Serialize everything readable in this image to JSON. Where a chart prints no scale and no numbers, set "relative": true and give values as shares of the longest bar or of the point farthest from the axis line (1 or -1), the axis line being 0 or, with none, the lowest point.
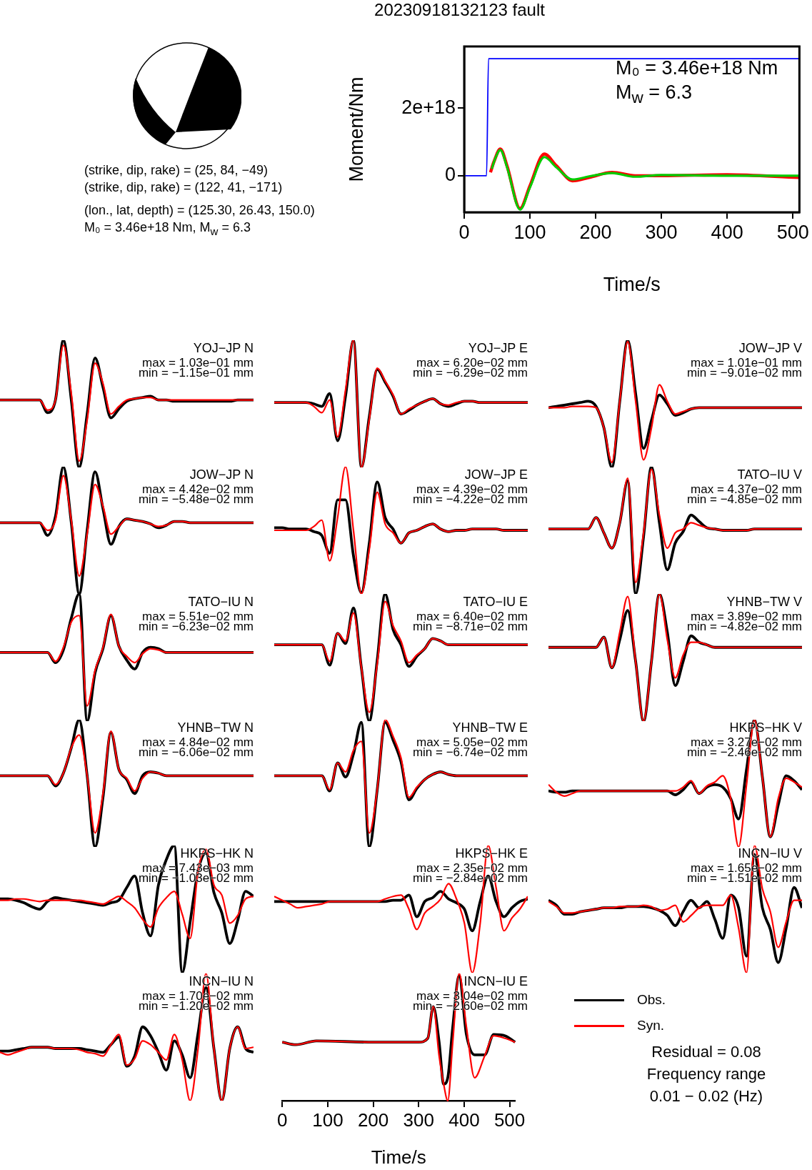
{
  "chart_data": [
    {
      "type": "line",
      "title": "20230918132123 fault",
      "xlabel": "Time/s",
      "ylabel": "Moment/Nm",
      "xlim": [
        0,
        510
      ],
      "xticks": [
        0,
        100,
        200,
        300,
        400,
        500
      ],
      "ylim": [
        -1.08e+18,
        3.82e+18
      ],
      "yticks": [
        0,
        {
          "value": 2e+18,
          "label": "2e+18"
        }
      ],
      "annotations": [
        "(strike, dip, rake) = (25, 84, −49)",
        "(strike, dip, rake) = (122, 41, −171)",
        "(lon., lat, depth) = (125.30, 26.43, 150.0)",
        "M₀ = 3.46e+18 Nm, M$_{w}$ = 6.3",
        "M₀ = 3.46e+18 Nm",
        "M$_{w}$ = 6.3"
      ],
      "series": [
        {
          "color": "#ff0000",
          "x": [
            40,
            45,
            55,
            65,
            85,
            100,
            122,
            140,
            165,
            190,
            225,
            260,
            300,
            400,
            509
          ],
          "values": [
            1e+17,
            4e+17,
            7.9e+17,
            3e+17,
            -9.7e+17,
            -3e+17,
            6.4e+17,
            3e+17,
            -1.5e+17,
            -5e+16,
            1e+17,
            0,
            0,
            3e+16,
            -5e+16
          ]
        },
        {
          "color": "#00cc00",
          "x": [
            42,
            47,
            55,
            65,
            85,
            100,
            122,
            140,
            165,
            190,
            225,
            260,
            300,
            400,
            509
          ],
          "values": [
            2e+17,
            5e+17,
            7.6e+17,
            2.6e+17,
            -1e+18,
            -3.5e+17,
            5.5e+17,
            2.5e+17,
            -1.1e+17,
            -2e+16,
            8e+16,
            -3e+16,
            2e+16,
            0,
            0
          ]
        },
        {
          "color": "#0000ff",
          "x": [
            0,
            34,
            37,
            509
          ],
          "values": [
            0,
            0,
            3.46e+18,
            3.46e+18
          ]
        }
      ]
    },
    {
      "type": "line",
      "title": "YOJ−JP N",
      "annotations": [
        "max = 1.03e−01 mm",
        "min = −1.15e−01 mm"
      ],
      "relative": true,
      "tick_labels": false,
      "categories": [
        null,
        null,
        null,
        null,
        null,
        null,
        null,
        null,
        null,
        null,
        null,
        null,
        null,
        null,
        null,
        null,
        null,
        null,
        null,
        null,
        null,
        null,
        null,
        null,
        null,
        null,
        null,
        null,
        null,
        null,
        null,
        null,
        null
      ],
      "series": [
        {
          "color": "#000000",
          "values": [
            0.53,
            0.53,
            0.53,
            0.53,
            0.53,
            0.53,
            0.43,
            0.53,
            1,
            0.53,
            0,
            0.42,
            0.86,
            0.63,
            0.39,
            0.46,
            0.52,
            0.54,
            0.55,
            0.56,
            0.53,
            0.53,
            0.52,
            0.52,
            0.52,
            0.52,
            0.52,
            0.52,
            0.52,
            0.52,
            0.53,
            0.53,
            0.53
          ]
        },
        {
          "color": "#ff0000",
          "values": [
            0.53,
            0.53,
            0.53,
            0.53,
            0.53,
            0.53,
            0.45,
            0.53,
            0.96,
            0.58,
            0.05,
            0.37,
            0.82,
            0.66,
            0.42,
            0.48,
            0.53,
            0.54,
            0.55,
            0.55,
            0.53,
            0.53,
            0.53,
            0.53,
            0.53,
            0.53,
            0.53,
            0.53,
            0.53,
            0.53,
            0.53,
            0.53,
            0.53
          ]
        }
      ]
    },
    {
      "type": "line",
      "title": "YOJ−JP E",
      "annotations": [
        "max = 6.20e−02 mm",
        "min = −6.29e−02 mm"
      ],
      "relative": true,
      "tick_labels": false,
      "categories": [
        null,
        null,
        null,
        null,
        null,
        null,
        null,
        null,
        null,
        null,
        null,
        null,
        null,
        null,
        null,
        null,
        null,
        null,
        null,
        null,
        null,
        null,
        null,
        null,
        null,
        null,
        null,
        null,
        null,
        null,
        null,
        null,
        null
      ],
      "series": [
        {
          "color": "#000000",
          "values": [
            0.51,
            0.51,
            0.51,
            0.51,
            0.51,
            0.5,
            0.48,
            0.58,
            0.21,
            0.56,
            1,
            0,
            0.4,
            0.77,
            0.67,
            0.56,
            0.42,
            0.45,
            0.49,
            0.52,
            0.54,
            0.5,
            0.48,
            0.5,
            0.52,
            0.52,
            0.51,
            0.51,
            0.51,
            0.51,
            0.51,
            0.51,
            0.51
          ]
        },
        {
          "color": "#ff0000",
          "values": [
            0.51,
            0.51,
            0.51,
            0.51,
            0.51,
            0.48,
            0.43,
            0.53,
            0.24,
            0.61,
            1,
            0,
            0.38,
            0.78,
            0.68,
            0.57,
            0.42,
            0.46,
            0.49,
            0.52,
            0.54,
            0.5,
            0.49,
            0.51,
            0.52,
            0.52,
            0.51,
            0.51,
            0.51,
            0.51,
            0.51,
            0.51,
            0.51
          ]
        }
      ]
    },
    {
      "type": "line",
      "title": "JOW−JP V",
      "annotations": [
        "max = 1.01e−01 mm",
        "min = −9.01e−02 mm"
      ],
      "relative": true,
      "tick_labels": false,
      "categories": [
        null,
        null,
        null,
        null,
        null,
        null,
        null,
        null,
        null,
        null,
        null,
        null,
        null,
        null,
        null,
        null,
        null,
        null,
        null,
        null,
        null,
        null,
        null,
        null,
        null,
        null,
        null,
        null,
        null,
        null,
        null,
        null,
        null
      ],
      "series": [
        {
          "color": "#000000",
          "values": [
            0.47,
            0.48,
            0.49,
            0.5,
            0.51,
            0.52,
            0.48,
            0.31,
            0,
            0.52,
            1,
            0.58,
            0.15,
            0.37,
            0.57,
            0.5,
            0.41,
            0.43,
            0.46,
            0.47,
            0.47,
            0.47,
            0.47,
            0.47,
            0.47,
            0.47,
            0.47,
            0.47,
            0.47,
            0.47,
            0.47,
            0.47,
            0.47
          ]
        },
        {
          "color": "#ff0000",
          "values": [
            0.47,
            0.47,
            0.47,
            0.48,
            0.48,
            0.48,
            0.47,
            0.31,
            0.04,
            0.52,
            0.99,
            0.52,
            0.06,
            0.31,
            0.65,
            0.52,
            0.42,
            0.44,
            0.46,
            0.47,
            0.47,
            0.47,
            0.47,
            0.47,
            0.47,
            0.47,
            0.47,
            0.47,
            0.47,
            0.47,
            0.47,
            0.47,
            0.47
          ]
        }
      ]
    },
    {
      "type": "line",
      "title": "JOW−JP N",
      "annotations": [
        "max = 4.42e−02 mm",
        "min = −5.48e−02 mm"
      ],
      "relative": true,
      "tick_labels": false,
      "categories": [
        null,
        null,
        null,
        null,
        null,
        null,
        null,
        null,
        null,
        null,
        null,
        null,
        null,
        null,
        null,
        null,
        null,
        null,
        null,
        null,
        null,
        null,
        null,
        null,
        null,
        null,
        null,
        null,
        null,
        null,
        null,
        null,
        null
      ],
      "series": [
        {
          "color": "#000000",
          "values": [
            0.56,
            0.56,
            0.56,
            0.56,
            0.56,
            0.56,
            0.46,
            0.61,
            1,
            0.56,
            0,
            0.5,
            0.96,
            0.67,
            0.39,
            0.53,
            0.59,
            0.58,
            0.57,
            0.55,
            0.52,
            0.54,
            0.57,
            0.57,
            0.56,
            0.56,
            0.56,
            0.56,
            0.56,
            0.56,
            0.56,
            0.56,
            0.56
          ]
        },
        {
          "color": "#ff0000",
          "values": [
            0.56,
            0.56,
            0.56,
            0.56,
            0.56,
            0.56,
            0.5,
            0.58,
            0.93,
            0.58,
            0.14,
            0.47,
            0.86,
            0.69,
            0.47,
            0.53,
            0.59,
            0.58,
            0.57,
            0.55,
            0.53,
            0.54,
            0.57,
            0.57,
            0.56,
            0.56,
            0.56,
            0.56,
            0.56,
            0.56,
            0.56,
            0.56,
            0.56
          ]
        }
      ]
    },
    {
      "type": "line",
      "title": "JOW−JP E",
      "annotations": [
        "max = 4.39e−02 mm",
        "min = −4.22e−02 mm"
      ],
      "relative": true,
      "tick_labels": false,
      "categories": [
        null,
        null,
        null,
        null,
        null,
        null,
        null,
        null,
        null,
        null,
        null,
        null,
        null,
        null,
        null,
        null,
        null,
        null,
        null,
        null,
        null,
        null,
        null,
        null,
        null,
        null,
        null,
        null,
        null,
        null,
        null,
        null,
        null
      ],
      "series": [
        {
          "color": "#000000",
          "values": [
            0.52,
            0.52,
            0.51,
            0.51,
            0.51,
            0.49,
            0.46,
            0.32,
            0.74,
            0.74,
            0.3,
            0.01,
            0.4,
            0.88,
            0.6,
            0.51,
            0.4,
            0.48,
            0.5,
            0.53,
            0.55,
            0.51,
            0.49,
            0.5,
            0.5,
            0.51,
            0.51,
            0.51,
            0.51,
            0.5,
            0.5,
            0.5,
            0.5
          ]
        },
        {
          "color": "#ff0000",
          "values": [
            0.5,
            0.5,
            0.5,
            0.5,
            0.5,
            0.53,
            0.58,
            0.26,
            0.6,
            1,
            0.5,
            0,
            0.35,
            0.8,
            0.55,
            0.48,
            0.4,
            0.48,
            0.5,
            0.53,
            0.55,
            0.51,
            0.49,
            0.5,
            0.5,
            0.51,
            0.51,
            0.51,
            0.51,
            0.5,
            0.5,
            0.5,
            0.5
          ]
        }
      ]
    },
    {
      "type": "line",
      "title": "TATO−IU V",
      "annotations": [
        "max = 4.37e−02 mm",
        "min = −4.85e−02 mm"
      ],
      "relative": true,
      "tick_labels": false,
      "categories": [
        null,
        null,
        null,
        null,
        null,
        null,
        null,
        null,
        null,
        null,
        null,
        null,
        null,
        null,
        null,
        null,
        null,
        null,
        null,
        null,
        null,
        null,
        null,
        null,
        null,
        null,
        null,
        null,
        null,
        null,
        null,
        null,
        null
      ],
      "series": [
        {
          "color": "#000000",
          "values": [
            0.51,
            0.51,
            0.51,
            0.51,
            0.51,
            0.51,
            0.6,
            0.48,
            0.36,
            0.56,
            0.89,
            0,
            0.45,
            1,
            0.56,
            0.19,
            0.4,
            0.49,
            0.62,
            0.57,
            0.52,
            0.51,
            0.5,
            0.5,
            0.5,
            0.5,
            0.51,
            0.51,
            0.51,
            0.51,
            0.51,
            0.51,
            0.51
          ]
        },
        {
          "color": "#ff0000",
          "values": [
            0.51,
            0.51,
            0.51,
            0.51,
            0.51,
            0.51,
            0.6,
            0.48,
            0.36,
            0.56,
            0.91,
            0.09,
            0.48,
            0.98,
            0.62,
            0.36,
            0.48,
            0.51,
            0.56,
            0.54,
            0.52,
            0.51,
            0.5,
            0.5,
            0.5,
            0.5,
            0.51,
            0.51,
            0.51,
            0.51,
            0.51,
            0.51,
            0.51
          ]
        }
      ]
    },
    {
      "type": "line",
      "title": "TATO−IU N",
      "annotations": [
        "max = 5.51e−02 mm",
        "min = −6.23e−02 mm"
      ],
      "relative": true,
      "tick_labels": false,
      "categories": [
        null,
        null,
        null,
        null,
        null,
        null,
        null,
        null,
        null,
        null,
        null,
        null,
        null,
        null,
        null,
        null,
        null,
        null,
        null,
        null,
        null,
        null,
        null,
        null,
        null,
        null,
        null,
        null,
        null,
        null,
        null,
        null,
        null
      ],
      "series": [
        {
          "color": "#000000",
          "values": [
            0.54,
            0.54,
            0.54,
            0.54,
            0.54,
            0.54,
            0.54,
            0.46,
            0.56,
            0.81,
            1,
            0,
            0.38,
            0.57,
            0.83,
            0.59,
            0.48,
            0.41,
            0.54,
            0.58,
            0.57,
            0.54,
            0.54,
            0.54,
            0.54,
            0.54,
            0.54,
            0.54,
            0.54,
            0.54,
            0.54,
            0.54,
            0.54
          ]
        },
        {
          "color": "#ff0000",
          "values": [
            0.54,
            0.54,
            0.54,
            0.54,
            0.54,
            0.54,
            0.54,
            0.47,
            0.58,
            0.78,
            0.83,
            0.12,
            0.4,
            0.58,
            0.84,
            0.59,
            0.51,
            0.46,
            0.53,
            0.57,
            0.56,
            0.54,
            0.54,
            0.54,
            0.54,
            0.54,
            0.54,
            0.54,
            0.54,
            0.54,
            0.54,
            0.54,
            0.54
          ]
        }
      ]
    },
    {
      "type": "line",
      "title": "TATO−IU E",
      "annotations": [
        "max = 6.40e−02 mm",
        "min = −8.71e−02 mm"
      ],
      "relative": true,
      "tick_labels": false,
      "categories": [
        null,
        null,
        null,
        null,
        null,
        null,
        null,
        null,
        null,
        null,
        null,
        null,
        null,
        null,
        null,
        null,
        null,
        null,
        null,
        null,
        null,
        null,
        null,
        null,
        null,
        null,
        null,
        null,
        null,
        null,
        null,
        null,
        null
      ],
      "series": [
        {
          "color": "#000000",
          "values": [
            0.6,
            0.6,
            0.6,
            0.6,
            0.6,
            0.6,
            0.6,
            0.44,
            0.69,
            0.61,
            0.89,
            0.42,
            0,
            0.48,
            1,
            0.72,
            0.6,
            0.43,
            0.51,
            0.57,
            0.65,
            0.63,
            0.6,
            0.6,
            0.6,
            0.6,
            0.6,
            0.6,
            0.6,
            0.6,
            0.6,
            0.6,
            0.6
          ]
        },
        {
          "color": "#ff0000",
          "values": [
            0.6,
            0.6,
            0.6,
            0.6,
            0.6,
            0.6,
            0.6,
            0.47,
            0.69,
            0.63,
            0.85,
            0.42,
            0.07,
            0.45,
            0.94,
            0.75,
            0.63,
            0.46,
            0.52,
            0.57,
            0.65,
            0.63,
            0.6,
            0.6,
            0.6,
            0.6,
            0.6,
            0.6,
            0.6,
            0.6,
            0.6,
            0.6,
            0.6
          ]
        }
      ]
    },
    {
      "type": "line",
      "title": "YHNB−TW V",
      "annotations": [
        "max = 3.89e−02 mm",
        "min = −4.82e−02 mm"
      ],
      "relative": true,
      "tick_labels": false,
      "categories": [
        null,
        null,
        null,
        null,
        null,
        null,
        null,
        null,
        null,
        null,
        null,
        null,
        null,
        null,
        null,
        null,
        null,
        null,
        null,
        null,
        null,
        null,
        null,
        null,
        null,
        null,
        null,
        null,
        null,
        null,
        null,
        null,
        null
      ],
      "series": [
        {
          "color": "#000000",
          "values": [
            0.58,
            0.58,
            0.58,
            0.58,
            0.58,
            0.58,
            0.58,
            0.66,
            0.42,
            0.64,
            0.87,
            0.47,
            0,
            0.47,
            1,
            0.7,
            0.28,
            0.47,
            0.67,
            0.62,
            0.6,
            0.58,
            0.58,
            0.58,
            0.58,
            0.58,
            0.58,
            0.58,
            0.58,
            0.58,
            0.58,
            0.58,
            0.58
          ]
        },
        {
          "color": "#ff0000",
          "values": [
            0.58,
            0.58,
            0.58,
            0.58,
            0.58,
            0.58,
            0.58,
            0.66,
            0.42,
            0.7,
            0.98,
            0.47,
            0,
            0.47,
            1,
            0.64,
            0.34,
            0.52,
            0.62,
            0.62,
            0.6,
            0.58,
            0.58,
            0.58,
            0.58,
            0.58,
            0.58,
            0.58,
            0.58,
            0.58,
            0.58,
            0.58,
            0.58
          ]
        }
      ]
    },
    {
      "type": "line",
      "title": "YHNB−TW N",
      "annotations": [
        "max = 4.84e−02 mm",
        "min = −6.06e−02 mm"
      ],
      "relative": true,
      "tick_labels": false,
      "categories": [
        null,
        null,
        null,
        null,
        null,
        null,
        null,
        null,
        null,
        null,
        null,
        null,
        null,
        null,
        null,
        null,
        null,
        null,
        null,
        null,
        null,
        null,
        null,
        null,
        null,
        null,
        null,
        null,
        null,
        null,
        null,
        null,
        null
      ],
      "series": [
        {
          "color": "#000000",
          "values": [
            0.56,
            0.56,
            0.56,
            0.56,
            0.56,
            0.56,
            0.56,
            0.48,
            0.58,
            0.78,
            1,
            0.56,
            0,
            0.39,
            0.9,
            0.61,
            0.53,
            0.42,
            0.56,
            0.59,
            0.58,
            0.56,
            0.56,
            0.56,
            0.56,
            0.56,
            0.56,
            0.56,
            0.56,
            0.56,
            0.56,
            0.56,
            0.56
          ]
        },
        {
          "color": "#ff0000",
          "values": [
            0.56,
            0.56,
            0.56,
            0.56,
            0.56,
            0.56,
            0.56,
            0.49,
            0.58,
            0.78,
            0.88,
            0.56,
            0.11,
            0.42,
            0.91,
            0.61,
            0.54,
            0.44,
            0.54,
            0.59,
            0.58,
            0.56,
            0.56,
            0.56,
            0.56,
            0.56,
            0.56,
            0.56,
            0.56,
            0.56,
            0.56,
            0.56,
            0.56
          ]
        }
      ]
    },
    {
      "type": "line",
      "title": "YHNB−TW E",
      "annotations": [
        "max = 5.05e−02 mm",
        "min = −6.74e−02 mm"
      ],
      "relative": true,
      "tick_labels": false,
      "categories": [
        null,
        null,
        null,
        null,
        null,
        null,
        null,
        null,
        null,
        null,
        null,
        null,
        null,
        null,
        null,
        null,
        null,
        null,
        null,
        null,
        null,
        null,
        null,
        null,
        null,
        null,
        null,
        null,
        null,
        null,
        null,
        null,
        null
      ],
      "series": [
        {
          "color": "#000000",
          "values": [
            0.56,
            0.56,
            0.56,
            0.56,
            0.56,
            0.56,
            0.56,
            0.44,
            0.66,
            0.55,
            0.73,
            0.98,
            0,
            0.45,
            0.98,
            0.84,
            0.67,
            0.37,
            0.46,
            0.53,
            0.57,
            0.59,
            0.57,
            0.56,
            0.56,
            0.56,
            0.56,
            0.56,
            0.56,
            0.56,
            0.56,
            0.56,
            0.56
          ]
        },
        {
          "color": "#ff0000",
          "values": [
            0.56,
            0.56,
            0.56,
            0.56,
            0.56,
            0.56,
            0.56,
            0.45,
            0.66,
            0.59,
            0.76,
            0.83,
            0.11,
            0.45,
            1,
            0.87,
            0.7,
            0.39,
            0.47,
            0.53,
            0.57,
            0.59,
            0.57,
            0.56,
            0.56,
            0.56,
            0.56,
            0.56,
            0.56,
            0.56,
            0.56,
            0.56,
            0.56
          ]
        }
      ]
    },
    {
      "type": "line",
      "title": "HKPS−HK V",
      "annotations": [
        "max = 3.27e−02 mm",
        "min = −2.46e−02 mm"
      ],
      "relative": true,
      "tick_labels": false,
      "categories": [
        null,
        null,
        null,
        null,
        null,
        null,
        null,
        null,
        null,
        null,
        null,
        null,
        null,
        null,
        null,
        null,
        null,
        null,
        null,
        null,
        null,
        null,
        null,
        null,
        null,
        null,
        null,
        null,
        null,
        null,
        null,
        null,
        null
      ],
      "series": [
        {
          "color": "#000000",
          "values": [
            0.44,
            0.43,
            0.43,
            0.44,
            0.44,
            0.44,
            0.44,
            0.44,
            0.44,
            0.44,
            0.44,
            0.44,
            0.44,
            0.44,
            0.44,
            0.44,
            0.41,
            0.45,
            0.51,
            0.42,
            0.47,
            0.49,
            0.47,
            0.38,
            0.22,
            0.61,
            1,
            0.55,
            0.08,
            0.33,
            0.56,
            0.52,
            0.45
          ]
        },
        {
          "color": "#ff0000",
          "values": [
            0.49,
            0.43,
            0.4,
            0.42,
            0.44,
            0.44,
            0.44,
            0.44,
            0.44,
            0.44,
            0.44,
            0.44,
            0.44,
            0.44,
            0.44,
            0.44,
            0.44,
            0.47,
            0.52,
            0.42,
            0.48,
            0.51,
            0.56,
            0.38,
            0,
            0.49,
            1,
            0.55,
            0.08,
            0.38,
            0.54,
            0.51,
            0.47
          ]
        }
      ]
    },
    {
      "type": "line",
      "title": "HKPS−HK N",
      "annotations": [
        "max = 7.43e−03 mm",
        "min = −1.03e−02 mm"
      ],
      "relative": true,
      "tick_labels": false,
      "categories": [
        null,
        null,
        null,
        null,
        null,
        null,
        null,
        null,
        null,
        null,
        null,
        null,
        null,
        null,
        null,
        null,
        null,
        null,
        null,
        null,
        null,
        null,
        null,
        null,
        null,
        null,
        null,
        null,
        null,
        null,
        null,
        null,
        null
      ],
      "series": [
        {
          "color": "#000000",
          "values": [
            0.58,
            0.58,
            0.57,
            0.55,
            0.52,
            0.5,
            0.56,
            0.59,
            0.58,
            0.57,
            0.56,
            0.55,
            0.54,
            0.53,
            0.55,
            0.57,
            0.67,
            0.76,
            0.47,
            0.29,
            0.69,
            0.89,
            1,
            0,
            0.4,
            0.8,
            0.94,
            0.63,
            0.47,
            0.23,
            0.41,
            0.64,
            0.6
          ]
        },
        {
          "color": "#ff0000",
          "values": [
            0.57,
            0.57,
            0.58,
            0.58,
            0.57,
            0.56,
            0.57,
            0.57,
            0.57,
            0.57,
            0.57,
            0.56,
            0.55,
            0.54,
            0.57,
            0.6,
            0.56,
            0.51,
            0.42,
            0.36,
            0.51,
            0.59,
            0.64,
            0.46,
            0.27,
            0.8,
            0.97,
            0.69,
            0.61,
            0.39,
            0.45,
            0.58,
            0.6
          ]
        }
      ]
    },
    {
      "type": "line",
      "title": "HKPS−HK E",
      "annotations": [
        "max = 2.35e−02 mm",
        "min = −2.84e−02 mm"
      ],
      "relative": true,
      "tick_labels": false,
      "categories": [
        null,
        null,
        null,
        null,
        null,
        null,
        null,
        null,
        null,
        null,
        null,
        null,
        null,
        null,
        null,
        null,
        null,
        null,
        null,
        null,
        null,
        null,
        null,
        null,
        null,
        null,
        null,
        null,
        null,
        null,
        null,
        null,
        null
      ],
      "series": [
        {
          "color": "#000000",
          "values": [
            0.56,
            0.56,
            0.56,
            0.56,
            0.56,
            0.56,
            0.56,
            0.56,
            0.56,
            0.56,
            0.56,
            0.56,
            0.56,
            0.56,
            0.56,
            0.57,
            0.57,
            0.61,
            0.44,
            0.56,
            0.59,
            0.64,
            0.58,
            0.55,
            0.5,
            0.33,
            0.56,
            0.76,
            0.56,
            0.44,
            0.51,
            0.56,
            0.58
          ]
        },
        {
          "color": "#ff0000",
          "values": [
            0.6,
            0.57,
            0.54,
            0.51,
            0.52,
            0.53,
            0.54,
            0.56,
            0.56,
            0.56,
            0.56,
            0.56,
            0.56,
            0.56,
            0.58,
            0.6,
            0.61,
            0.5,
            0.34,
            0.47,
            0.52,
            0.58,
            0.7,
            0.58,
            0.39,
            0,
            0.39,
            1,
            0.67,
            0.33,
            0.43,
            0.5,
            0.6
          ]
        }
      ]
    },
    {
      "type": "line",
      "title": "INCN−IU V",
      "annotations": [
        "max = 1.65e−02 mm",
        "min = −1.51e−02 mm"
      ],
      "relative": true,
      "tick_labels": false,
      "categories": [
        null,
        null,
        null,
        null,
        null,
        null,
        null,
        null,
        null,
        null,
        null,
        null,
        null,
        null,
        null,
        null,
        null,
        null,
        null,
        null,
        null,
        null,
        null,
        null,
        null,
        null,
        null,
        null,
        null,
        null,
        null,
        null,
        null
      ],
      "series": [
        {
          "color": "#000000",
          "values": [
            0.57,
            0.53,
            0.46,
            0.46,
            0.48,
            0.49,
            0.5,
            0.51,
            0.51,
            0.51,
            0.52,
            0.52,
            0.52,
            0.51,
            0.49,
            0.45,
            0.37,
            0.48,
            0.57,
            0.51,
            0.56,
            0.42,
            0.27,
            0.61,
            0.51,
            0.13,
            0.93,
            0.51,
            0.34,
            0.08,
            0.35,
            0.67,
            0.51
          ]
        },
        {
          "color": "#ff0000",
          "values": [
            0.56,
            0.52,
            0.47,
            0.47,
            0.48,
            0.49,
            0.5,
            0.51,
            0.51,
            0.52,
            0.52,
            0.52,
            0.53,
            0.52,
            0.49,
            0.5,
            0.53,
            0.4,
            0.45,
            0.51,
            0.53,
            0.53,
            0.53,
            0.61,
            0.35,
            0,
            1,
            0.66,
            0.48,
            0.2,
            0.4,
            0.57,
            0.57
          ]
        }
      ]
    },
    {
      "type": "line",
      "title": "INCN−IU N",
      "annotations": [
        "max = 1.70e−02 mm",
        "min = −1.20e−02 mm"
      ],
      "relative": true,
      "tick_labels": false,
      "categories": [
        null,
        null,
        null,
        null,
        null,
        null,
        null,
        null,
        null,
        null,
        null,
        null,
        null,
        null,
        null,
        null,
        null,
        null,
        null,
        null,
        null,
        null,
        null,
        null,
        null,
        null,
        null,
        null,
        null,
        null,
        null,
        null,
        null
      ],
      "series": [
        {
          "color": "#000000",
          "values": [
            0.39,
            0.39,
            0.4,
            0.41,
            0.42,
            0.42,
            0.42,
            0.41,
            0.41,
            0.41,
            0.41,
            0.4,
            0.39,
            0.38,
            0.44,
            0.5,
            0.27,
            0.35,
            0.58,
            0.51,
            0.38,
            0.24,
            0.47,
            0.36,
            0.18,
            0.53,
            0.89,
            0.41,
            0,
            0.41,
            0.58,
            0.41,
            0.38
          ]
        },
        {
          "color": "#ff0000",
          "values": [
            0.38,
            0.36,
            0.38,
            0.4,
            0.42,
            0.42,
            0.42,
            0.41,
            0.41,
            0.41,
            0.4,
            0.38,
            0.37,
            0.35,
            0.44,
            0.52,
            0.28,
            0.33,
            0.47,
            0.44,
            0.38,
            0.32,
            0.52,
            0.32,
            0,
            0.41,
            1,
            0.41,
            0,
            0.41,
            0.58,
            0.41,
            0.42
          ]
        }
      ]
    },
    {
      "type": "line",
      "title": "INCN−IU E",
      "xlabel": "Time/s",
      "annotations": [
        "max = 3.04e−02 mm",
        "min = −2.60e−02 mm",
        "Residual = 0.08",
        "Frequency range",
        "0.01 − 0.02 (Hz)"
      ],
      "relative": true,
      "tick_labels": "x",
      "legend": "right",
      "xlim": [
        0,
        512
      ],
      "xticks": [
        0,
        100,
        200,
        300,
        400,
        500
      ],
      "x": [
        0,
        30,
        75,
        200,
        300,
        320,
        332,
        345,
        355,
        364,
        375,
        389,
        405,
        423,
        445,
        465,
        490,
        512
      ],
      "series": [
        {
          "name": "Obs.",
          "color": "#000000",
          "values": [
            0.46,
            0.44,
            0.47,
            0.46,
            0.46,
            0.49,
            0.74,
            0.46,
            0.13,
            0.18,
            0.58,
            0.98,
            0.52,
            0.36,
            0.36,
            0.52,
            0.51,
            0.46
          ]
        },
        {
          "name": "Syn.",
          "color": "#ff0000",
          "values": [
            0.46,
            0.44,
            0.47,
            0.46,
            0.46,
            0.49,
            0.74,
            0.35,
            0.13,
            0,
            0.46,
            1,
            0.58,
            0.18,
            0.35,
            0.51,
            0.49,
            0.46
          ]
        }
      ]
    }
  ]
}
